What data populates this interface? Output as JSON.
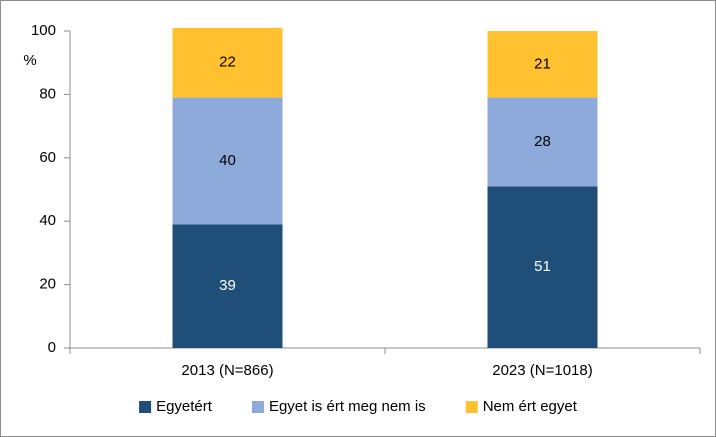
{
  "chart_data": {
    "type": "stacked_bar",
    "y_label": "%",
    "categories": [
      "2013 (N=866)",
      "2023 (N=1018)"
    ],
    "series": [
      {
        "name": "Egyetért",
        "color": "#1f4e79",
        "label_color": "#ffffff",
        "values": [
          39,
          51
        ]
      },
      {
        "name": "Egyet is ért meg nem is",
        "color": "#8eaadb",
        "label_color": "#000000",
        "values": [
          40,
          28
        ]
      },
      {
        "name": "Nem ért egyet",
        "color": "#ffc12f",
        "label_color": "#000000",
        "values": [
          22,
          21
        ]
      }
    ],
    "ylim": [
      0,
      100
    ],
    "yticks": [
      0,
      20,
      40,
      60,
      80,
      100
    ],
    "grid": false,
    "legend": "bottom"
  }
}
